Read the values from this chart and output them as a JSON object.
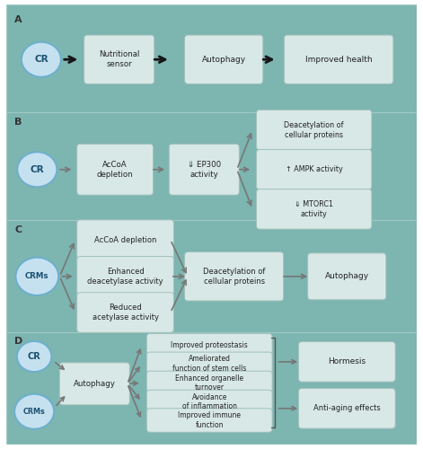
{
  "fig_bg": "#ffffff",
  "outer_border_color": "#cccccc",
  "panel_bg": "#7db5b0",
  "box_face": "#d8e8e6",
  "box_edge": "#a0c0bc",
  "circle_face": "#c5e0ef",
  "circle_edge": "#6aafd0",
  "circle_text": "#1a5070",
  "arrow_dark": "#151515",
  "arrow_gray": "#777777",
  "text_color": "#222222",
  "panel_label_color": "#333333",
  "separator_color": "#a0c8c4",
  "panel_A": {
    "label": "A",
    "CR": "CR",
    "box1": "Nutritional\nsensor",
    "box2": "Autophagy",
    "box3": "Improved health"
  },
  "panel_B": {
    "label": "B",
    "CR": "CR",
    "box1": "AcCoA\ndepletion",
    "box2": "⇓ EP300\nactivity",
    "out1": "Deacetylation of\ncellular proteins",
    "out2": "↑ AMPK activity",
    "out3": "⇓ MTORC1\nactivity"
  },
  "panel_C": {
    "label": "C",
    "CR": "CRMs",
    "in1": "AcCoA depletion",
    "in2": "Enhanced\ndeacetylase activity",
    "in3": "Reduced\nacetylase activity",
    "mid": "Deacetylation of\ncellular proteins",
    "out": "Autophagy"
  },
  "panel_D": {
    "label": "D",
    "cr": "CR",
    "crms": "CRMs",
    "mid": "Autophagy",
    "out1": "Improved proteostasis",
    "out2": "Ameliorated\nfunction of stem cells",
    "out3": "Enhanced organelle\nturnover",
    "out4": "Avoidance\nof inflammation",
    "out5": "Improved immune\nfunction",
    "fin1": "Hormesis",
    "fin2": "Anti-aging effects"
  }
}
